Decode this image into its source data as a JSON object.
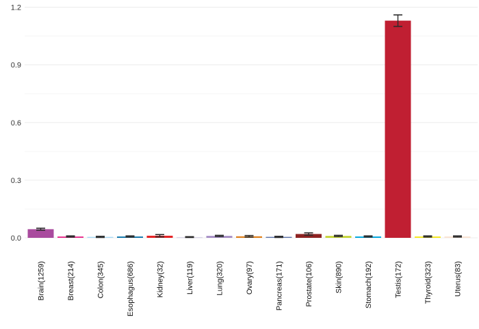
{
  "chart_data": {
    "type": "bar",
    "title": "",
    "xlabel": "",
    "ylabel": "",
    "legend": "none",
    "grid": "horizontal",
    "background_color": "#ffffff",
    "categories": [
      "Brain(1259)",
      "Breast(214)",
      "Colon(345)",
      "Esophagus(686)",
      "Kidney(32)",
      "Liver(119)",
      "Lung(320)",
      "Ovary(97)",
      "Pancreas(171)",
      "Prostate(106)",
      "Skin(890)",
      "Stomach(192)",
      "Testis(172)",
      "Thyroid(323)",
      "Uterus(83)"
    ],
    "tissues": [
      "Brain",
      "Breast",
      "Colon",
      "Esophagus",
      "Kidney",
      "Liver",
      "Lung",
      "Ovary",
      "Pancreas",
      "Prostate",
      "Skin",
      "Stomach",
      "Testis",
      "Thyroid",
      "Uterus"
    ],
    "sample_counts": [
      1259,
      214,
      345,
      686,
      32,
      119,
      320,
      97,
      171,
      106,
      890,
      192,
      172,
      323,
      83
    ],
    "values": [
      0.045,
      0.007,
      0.005,
      0.007,
      0.011,
      0.004,
      0.01,
      0.008,
      0.005,
      0.02,
      0.01,
      0.007,
      1.13,
      0.007,
      0.007
    ],
    "errors": [
      0.005,
      0.003,
      0.003,
      0.003,
      0.006,
      0.002,
      0.003,
      0.004,
      0.003,
      0.006,
      0.003,
      0.003,
      0.03,
      0.003,
      0.003
    ],
    "colors": [
      "#a94b9e",
      "#e9318e",
      "#a9d9f5",
      "#1579ae",
      "#e62325",
      "#d9d5e6",
      "#a58cc4",
      "#e0821e",
      "#5d74ab",
      "#8e2322",
      "#c4d435",
      "#00a7e0",
      "#c01f32",
      "#f6e820",
      "#f9e2d2"
    ],
    "ylim": [
      0,
      1.2
    ],
    "yticks": [
      0.0,
      0.3,
      0.6,
      0.9,
      1.2
    ],
    "ytick_labels": [
      "0.0",
      "0.3",
      "0.6",
      "0.9",
      "1.2"
    ],
    "minor_yticks": [
      0.15,
      0.45,
      0.75,
      1.05
    ],
    "grid_major_color": "#ececec",
    "grid_minor_color": "#f5f5f5",
    "error_bar_color": "#2b2b2b",
    "tick_label_color": "#333333",
    "x_label_color": "#111111"
  }
}
